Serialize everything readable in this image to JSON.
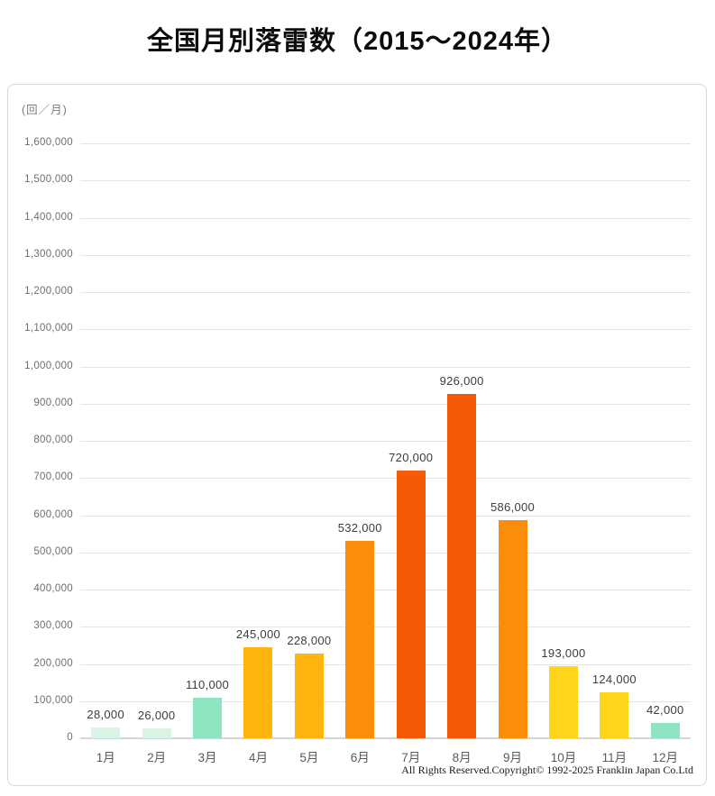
{
  "title": "全国月別落雷数（2015〜2024年）",
  "panel": {
    "unit_label": "(回／月)",
    "copyright": "All Rights Reserved.Copyright©  1992-2025 Franklin Japan Co.Ltd"
  },
  "chart_data": {
    "type": "bar",
    "title": "全国月別落雷数（2015〜2024年）",
    "ylabel": "(回／月)",
    "xlabel": "",
    "categories": [
      "1月",
      "2月",
      "3月",
      "4月",
      "5月",
      "6月",
      "7月",
      "8月",
      "9月",
      "10月",
      "11月",
      "12月"
    ],
    "values": [
      28000,
      26000,
      110000,
      245000,
      228000,
      532000,
      720000,
      926000,
      586000,
      193000,
      124000,
      42000
    ],
    "data_labels": [
      "28,000",
      "26,000",
      "110,000",
      "245,000",
      "228,000",
      "532,000",
      "720,000",
      "926,000",
      "586,000",
      "193,000",
      "124,000",
      "42,000"
    ],
    "bar_colors": [
      "#d9f3e5",
      "#d9f3e5",
      "#8fe5c1",
      "#ffb50e",
      "#ffb50e",
      "#fb8d0a",
      "#f55a07",
      "#f55a07",
      "#fb8d0a",
      "#ffd51c",
      "#ffd51c",
      "#8fe5c1"
    ],
    "ylim": [
      0,
      1600000
    ],
    "y_tick_step": 100000,
    "grid": true,
    "legend": false
  }
}
